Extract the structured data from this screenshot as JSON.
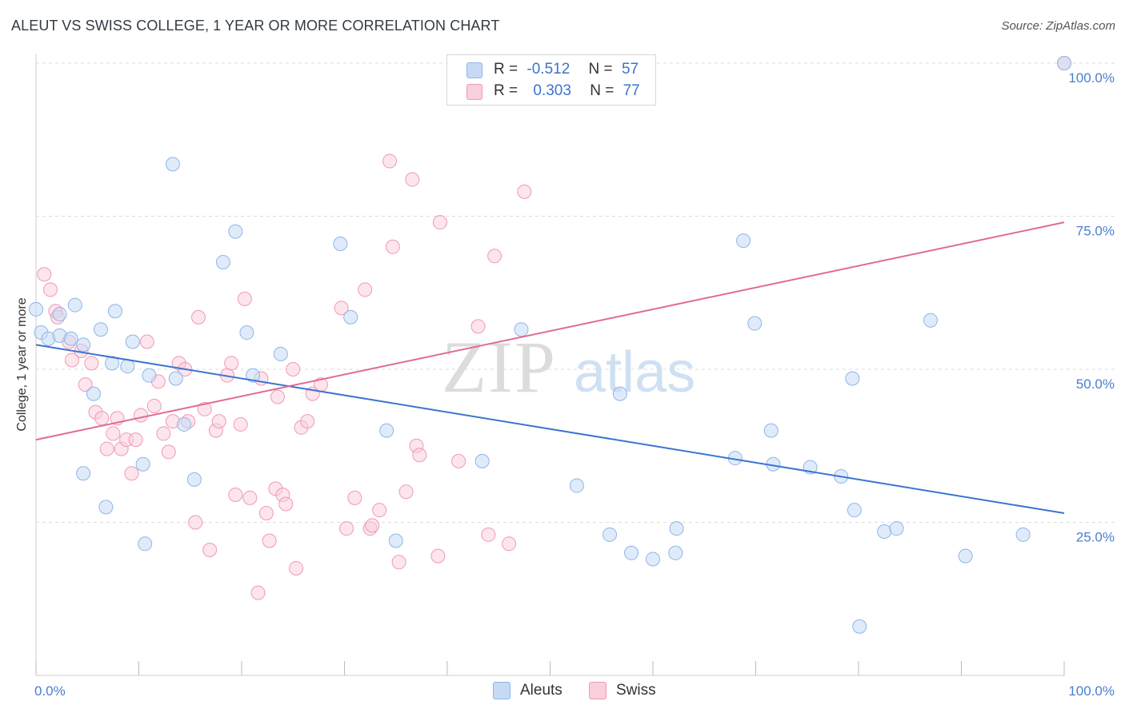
{
  "title": "ALEUT VS SWISS COLLEGE, 1 YEAR OR MORE CORRELATION CHART",
  "source": "Source: ZipAtlas.com",
  "watermark": {
    "zip": "ZIP",
    "atlas": "atlas"
  },
  "legend": {
    "aleut": {
      "r_label": "R =",
      "r_value": "-0.512",
      "n_label": "N =",
      "n_value": "57"
    },
    "swiss": {
      "r_label": "R =",
      "r_value": "0.303",
      "n_label": "N =",
      "n_value": "77"
    }
  },
  "colors": {
    "aleut_fill": "#c6daf5",
    "aleut_stroke": "#8fb5e8",
    "aleut_line": "#3b74d1",
    "swiss_fill": "#f9cfdc",
    "swiss_stroke": "#ef9ab5",
    "swiss_line": "#e06a95",
    "axis_text": "#4a7fcf",
    "grid": "#dddddd"
  },
  "chart_data": {
    "type": "scatter",
    "title": "ALEUT VS SWISS COLLEGE, 1 YEAR OR MORE CORRELATION CHART",
    "xlabel": "",
    "ylabel": "College, 1 year or more",
    "xlim": [
      0,
      100
    ],
    "ylim": [
      0,
      100
    ],
    "x_tick_labels": [
      "0.0%",
      "100.0%"
    ],
    "y_ticks": [
      25,
      50,
      75,
      100
    ],
    "y_tick_labels": [
      "25.0%",
      "50.0%",
      "75.0%",
      "100.0%"
    ],
    "grid": true,
    "legend_position": "bottom",
    "series": [
      {
        "name": "Aleuts",
        "r": -0.512,
        "n": 57,
        "trend": {
          "x": [
            0,
            100
          ],
          "y": [
            54.0,
            26.5
          ]
        },
        "points": [
          [
            0.0,
            59.8
          ],
          [
            0.5,
            56.0
          ],
          [
            1.2,
            55.0
          ],
          [
            2.3,
            59.0
          ],
          [
            2.3,
            55.5
          ],
          [
            3.4,
            55.0
          ],
          [
            3.8,
            60.5
          ],
          [
            4.6,
            54.0
          ],
          [
            4.6,
            33.0
          ],
          [
            5.6,
            46.0
          ],
          [
            6.3,
            56.5
          ],
          [
            6.8,
            27.5
          ],
          [
            7.4,
            51.0
          ],
          [
            7.7,
            59.5
          ],
          [
            8.9,
            50.5
          ],
          [
            9.4,
            54.5
          ],
          [
            10.4,
            34.5
          ],
          [
            10.6,
            21.5
          ],
          [
            11.0,
            49.0
          ],
          [
            13.3,
            83.5
          ],
          [
            13.6,
            48.5
          ],
          [
            14.4,
            41.0
          ],
          [
            15.4,
            32.0
          ],
          [
            18.2,
            67.5
          ],
          [
            19.4,
            72.5
          ],
          [
            20.5,
            56.0
          ],
          [
            21.1,
            49.0
          ],
          [
            23.8,
            52.5
          ],
          [
            29.6,
            70.5
          ],
          [
            30.6,
            58.5
          ],
          [
            34.1,
            40.0
          ],
          [
            35.0,
            22.0
          ],
          [
            43.4,
            35.0
          ],
          [
            47.2,
            56.5
          ],
          [
            52.6,
            31.0
          ],
          [
            55.8,
            23.0
          ],
          [
            56.8,
            46.0
          ],
          [
            57.9,
            20.0
          ],
          [
            60.0,
            19.0
          ],
          [
            62.2,
            20.0
          ],
          [
            62.3,
            24.0
          ],
          [
            68.0,
            35.5
          ],
          [
            68.8,
            71.0
          ],
          [
            69.9,
            57.5
          ],
          [
            71.5,
            40.0
          ],
          [
            71.7,
            34.5
          ],
          [
            75.3,
            34.0
          ],
          [
            78.3,
            32.5
          ],
          [
            79.4,
            48.5
          ],
          [
            79.6,
            27.0
          ],
          [
            80.1,
            8.0
          ],
          [
            82.5,
            23.5
          ],
          [
            83.7,
            24.0
          ],
          [
            87.0,
            58.0
          ],
          [
            90.4,
            19.5
          ],
          [
            96.0,
            23.0
          ],
          [
            100.0,
            100.0
          ]
        ]
      },
      {
        "name": "Swiss",
        "r": 0.303,
        "n": 77,
        "trend": {
          "x": [
            0,
            100
          ],
          "y": [
            38.5,
            74.0
          ]
        },
        "points": [
          [
            0.8,
            65.5
          ],
          [
            1.4,
            63.0
          ],
          [
            1.9,
            59.5
          ],
          [
            2.1,
            58.5
          ],
          [
            3.2,
            54.5
          ],
          [
            3.5,
            51.5
          ],
          [
            4.4,
            53.0
          ],
          [
            4.8,
            47.5
          ],
          [
            5.4,
            51.0
          ],
          [
            5.8,
            43.0
          ],
          [
            6.4,
            42.0
          ],
          [
            6.9,
            37.0
          ],
          [
            7.5,
            39.5
          ],
          [
            7.9,
            42.0
          ],
          [
            8.3,
            37.0
          ],
          [
            8.8,
            38.5
          ],
          [
            9.3,
            33.0
          ],
          [
            9.7,
            38.5
          ],
          [
            10.2,
            42.5
          ],
          [
            10.8,
            54.5
          ],
          [
            11.5,
            44.0
          ],
          [
            11.9,
            48.0
          ],
          [
            12.4,
            39.5
          ],
          [
            12.9,
            36.5
          ],
          [
            13.3,
            41.5
          ],
          [
            13.9,
            51.0
          ],
          [
            14.5,
            50.0
          ],
          [
            14.8,
            41.5
          ],
          [
            15.5,
            25.0
          ],
          [
            15.8,
            58.5
          ],
          [
            16.4,
            43.5
          ],
          [
            16.9,
            20.5
          ],
          [
            17.5,
            40.0
          ],
          [
            17.8,
            41.5
          ],
          [
            18.6,
            49.0
          ],
          [
            19.0,
            51.0
          ],
          [
            19.4,
            29.5
          ],
          [
            19.9,
            41.0
          ],
          [
            20.3,
            61.5
          ],
          [
            20.8,
            29.0
          ],
          [
            21.6,
            13.5
          ],
          [
            21.9,
            48.5
          ],
          [
            22.4,
            26.5
          ],
          [
            22.7,
            22.0
          ],
          [
            23.3,
            30.5
          ],
          [
            24.0,
            29.5
          ],
          [
            24.3,
            28.0
          ],
          [
            25.0,
            50.0
          ],
          [
            25.3,
            17.5
          ],
          [
            25.8,
            40.5
          ],
          [
            26.4,
            41.5
          ],
          [
            26.9,
            46.0
          ],
          [
            27.7,
            47.5
          ],
          [
            29.7,
            60.0
          ],
          [
            30.2,
            24.0
          ],
          [
            31.0,
            29.0
          ],
          [
            32.0,
            63.0
          ],
          [
            32.5,
            24.0
          ],
          [
            33.4,
            27.0
          ],
          [
            34.4,
            84.0
          ],
          [
            34.7,
            70.0
          ],
          [
            35.3,
            18.5
          ],
          [
            36.6,
            81.0
          ],
          [
            37.0,
            37.5
          ],
          [
            37.3,
            36.0
          ],
          [
            39.1,
            19.5
          ],
          [
            39.3,
            74.0
          ],
          [
            41.1,
            35.0
          ],
          [
            43.0,
            57.0
          ],
          [
            44.6,
            68.5
          ],
          [
            46.0,
            21.5
          ],
          [
            47.5,
            79.0
          ],
          [
            32.7,
            24.5
          ],
          [
            44.0,
            23.0
          ],
          [
            36.0,
            30.0
          ],
          [
            23.5,
            45.5
          ],
          [
            100.0,
            100.0
          ]
        ]
      }
    ]
  }
}
